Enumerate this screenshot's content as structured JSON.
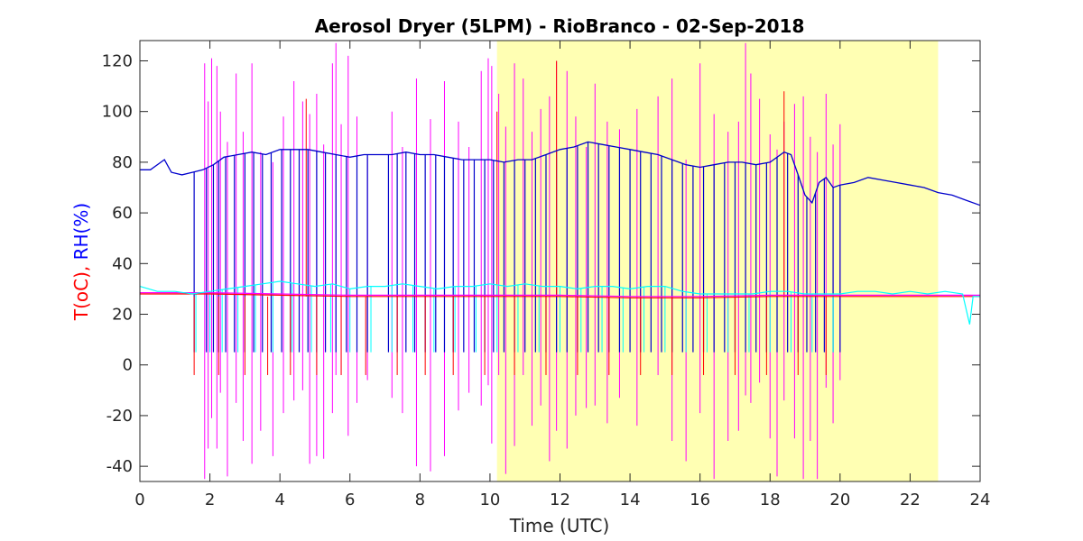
{
  "chart_data": {
    "type": "line",
    "title": "Aerosol Dryer (5LPM) - RioBranco - 02-Sep-2018",
    "xlabel": "Time (UTC)",
    "ylabel_parts": [
      {
        "text": "T(oC), ",
        "color": "#ff0000"
      },
      {
        "text": "RH(%)",
        "color": "#0000ff"
      }
    ],
    "xlim": [
      0,
      24
    ],
    "ylim": [
      -46,
      128
    ],
    "xticks": [
      0,
      2,
      4,
      6,
      8,
      10,
      12,
      14,
      16,
      18,
      20,
      22,
      24
    ],
    "xtick_labels": [
      "0",
      "2",
      "4",
      "6",
      "8",
      "10",
      "12",
      "14",
      "16",
      "18",
      "20",
      "22",
      "24"
    ],
    "yticks": [
      -40,
      -20,
      0,
      20,
      40,
      60,
      80,
      100,
      120
    ],
    "ytick_labels": [
      "-40",
      "-20",
      "0",
      "20",
      "40",
      "60",
      "80",
      "100",
      "120"
    ],
    "grid": false,
    "daylight_band": {
      "x0": 10.2,
      "x1": 22.8,
      "color": "#ffffb3"
    },
    "colors": {
      "rh_sample": "#0000cc",
      "rh_sheath": "#00ffff",
      "t_sample": "#ff0000",
      "t_sheath": "#ff00ff"
    },
    "series": [
      {
        "key": "rh_sample",
        "x": [
          0,
          0.3,
          0.6,
          0.7,
          0.9,
          1.2,
          1.5,
          1.8,
          2.1,
          2.4,
          2.8,
          3.2,
          3.6,
          4.0,
          4.4,
          4.8,
          5.2,
          5.6,
          6.0,
          6.4,
          6.8,
          7.2,
          7.6,
          8.0,
          8.4,
          8.8,
          9.2,
          9.6,
          10.0,
          10.4,
          10.8,
          11.2,
          11.6,
          12.0,
          12.4,
          12.8,
          13.2,
          13.6,
          14.0,
          14.4,
          14.8,
          15.2,
          15.6,
          16.0,
          16.4,
          16.8,
          17.2,
          17.6,
          18.0,
          18.4,
          18.6,
          18.8,
          19.0,
          19.2,
          19.4,
          19.6,
          19.8,
          20.0,
          20.4,
          20.8,
          21.2,
          21.6,
          22.0,
          22.4,
          22.8,
          23.2,
          23.6,
          24.0
        ],
        "y": [
          77,
          77,
          80,
          81,
          76,
          75,
          76,
          77,
          79,
          82,
          83,
          84,
          83,
          85,
          85,
          85,
          84,
          83,
          82,
          83,
          83,
          83,
          84,
          83,
          83,
          82,
          81,
          81,
          81,
          80,
          81,
          81,
          83,
          85,
          86,
          88,
          87,
          86,
          85,
          84,
          83,
          81,
          79,
          78,
          79,
          80,
          80,
          79,
          80,
          84,
          83,
          75,
          67,
          64,
          72,
          74,
          70,
          71,
          72,
          74,
          73,
          72,
          71,
          70,
          68,
          67,
          65,
          63
        ]
      },
      {
        "key": "rh_sheath",
        "x": [
          0,
          0.5,
          1.0,
          1.5,
          2.0,
          2.5,
          3.0,
          3.5,
          4.0,
          4.5,
          5.0,
          5.5,
          6.0,
          6.5,
          7.0,
          7.5,
          8.0,
          8.5,
          9.0,
          9.5,
          10.0,
          10.5,
          11.0,
          11.5,
          12.0,
          12.5,
          13.0,
          13.5,
          14.0,
          14.5,
          15.0,
          15.5,
          16.0,
          16.5,
          17.0,
          17.5,
          18.0,
          18.5,
          19.0,
          19.5,
          20.0,
          20.5,
          21.0,
          21.5,
          22.0,
          22.5,
          23.0,
          23.5,
          23.7,
          23.8,
          24.0
        ],
        "y": [
          31,
          29,
          29,
          28,
          29,
          30,
          31,
          32,
          33,
          32,
          31,
          32,
          30,
          31,
          31,
          32,
          31,
          30,
          31,
          31,
          32,
          31,
          32,
          31,
          31,
          30,
          31,
          31,
          30,
          31,
          31,
          29,
          28,
          28,
          28,
          28,
          29,
          29,
          28,
          28,
          28,
          29,
          29,
          28,
          29,
          28,
          29,
          28,
          16,
          27,
          27
        ]
      },
      {
        "key": "t_sample",
        "x": [
          0,
          2,
          4,
          6,
          8,
          10,
          12,
          14,
          16,
          18,
          20,
          22,
          24
        ],
        "y": [
          28,
          28,
          27.5,
          27,
          27,
          27,
          27,
          26.5,
          26.5,
          27,
          27,
          27,
          27
        ]
      },
      {
        "key": "t_sheath",
        "x": [
          0,
          2,
          4,
          6,
          8,
          10,
          12,
          14,
          16,
          18,
          20,
          22,
          24
        ],
        "y": [
          28.5,
          28.5,
          28,
          27.5,
          27.5,
          27.5,
          27.5,
          27,
          27,
          27.5,
          27.5,
          27.5,
          27.5
        ]
      }
    ],
    "dropouts": {
      "rh_sample": {
        "low": 5,
        "x": [
          1.55,
          1.9,
          2.1,
          2.25,
          2.45,
          2.7,
          3.0,
          3.25,
          3.5,
          3.75,
          4.05,
          4.3,
          4.55,
          4.8,
          5.05,
          5.3,
          5.6,
          5.9,
          6.2,
          6.5,
          7.1,
          7.35,
          7.6,
          7.85,
          8.15,
          8.45,
          8.7,
          8.95,
          9.25,
          9.55,
          9.85,
          10.1,
          10.4,
          10.7,
          11.0,
          11.3,
          11.6,
          11.9,
          12.2,
          12.5,
          12.8,
          13.1,
          13.4,
          13.7,
          14.0,
          14.3,
          14.6,
          14.9,
          15.2,
          15.5,
          15.8,
          16.1,
          16.4,
          16.7,
          17.0,
          17.3,
          17.6,
          17.9,
          18.2,
          18.5,
          18.8,
          19.05,
          19.3,
          19.55,
          19.8,
          20.0
        ]
      },
      "rh_sheath": {
        "low": 5,
        "x": [
          1.6,
          2.0,
          2.35,
          2.8,
          3.3,
          3.8,
          4.35,
          4.9,
          5.45,
          6.0,
          6.6,
          7.2,
          7.8,
          8.4,
          9.0,
          9.6,
          10.2,
          10.8,
          11.4,
          12.0,
          12.6,
          13.2,
          13.8,
          14.4,
          15.0,
          15.6,
          16.2,
          16.8,
          17.4,
          18.0,
          18.6,
          19.2,
          19.8
        ]
      },
      "t_sample": {
        "low": -4,
        "x": [
          1.55,
          2.25,
          3.0,
          3.65,
          4.3,
          5.05,
          5.75,
          6.45,
          7.35,
          8.15,
          8.95,
          9.85,
          10.7,
          11.6,
          12.5,
          13.4,
          14.3,
          15.2,
          16.1,
          17.0,
          17.9,
          18.8,
          19.6
        ]
      }
    },
    "spikes": {
      "t_sheath": {
        "x": [
          1.85,
          1.95,
          2.05,
          2.2,
          2.3,
          2.5,
          2.75,
          2.95,
          3.2,
          3.45,
          3.8,
          4.1,
          4.4,
          4.65,
          4.85,
          5.05,
          5.25,
          5.5,
          5.6,
          5.75,
          5.95,
          6.2,
          6.5,
          7.2,
          7.5,
          7.9,
          8.3,
          8.7,
          9.1,
          9.4,
          9.75,
          9.95,
          10.05,
          10.25,
          10.45,
          10.7,
          10.95,
          11.2,
          11.45,
          11.7,
          11.9,
          12.2,
          12.45,
          12.75,
          13.0,
          13.35,
          13.7,
          14.2,
          14.8,
          15.2,
          15.6,
          16.0,
          16.4,
          16.8,
          17.1,
          17.3,
          17.45,
          17.7,
          18.0,
          18.2,
          18.4,
          18.7,
          18.95,
          19.15,
          19.35,
          19.6,
          19.8,
          20.0
        ],
        "top": [
          119,
          104,
          121,
          118,
          100,
          88,
          115,
          92,
          119,
          84,
          80,
          98,
          112,
          104,
          99,
          107,
          87,
          119,
          127,
          95,
          122,
          98,
          82,
          100,
          86,
          113,
          97,
          112,
          96,
          86,
          116,
          121,
          118,
          107,
          94,
          119,
          113,
          92,
          101,
          106,
          120,
          116,
          98,
          86,
          111,
          96,
          93,
          101,
          106,
          113,
          81,
          119,
          99,
          92,
          96,
          127,
          115,
          105,
          91,
          85,
          96,
          103,
          106,
          90,
          84,
          107,
          87,
          95
        ],
        "bottom": [
          -45,
          -33,
          -21,
          -33,
          -11,
          -44,
          -15,
          -30,
          -39,
          -26,
          -36,
          -19,
          -14,
          -10,
          -39,
          -36,
          -37,
          -19,
          -4,
          -4,
          -28,
          -15,
          -6,
          -13,
          -19,
          -40,
          -42,
          -36,
          -18,
          -11,
          -16,
          -8,
          -31,
          -4,
          -43,
          -32,
          -4,
          -24,
          -16,
          -38,
          -26,
          -33,
          -20,
          -17,
          -16,
          -23,
          -13,
          -24,
          -4,
          -30,
          -38,
          -19,
          -45,
          -30,
          -26,
          -12,
          -15,
          -7,
          -29,
          -44,
          -14,
          -29,
          -45,
          -30,
          -45,
          -9,
          -23,
          -6
        ]
      },
      "t_sample": {
        "x": [
          4.75,
          10.2,
          11.9,
          18.4
        ],
        "top": [
          105,
          100,
          120,
          108
        ]
      }
    }
  }
}
